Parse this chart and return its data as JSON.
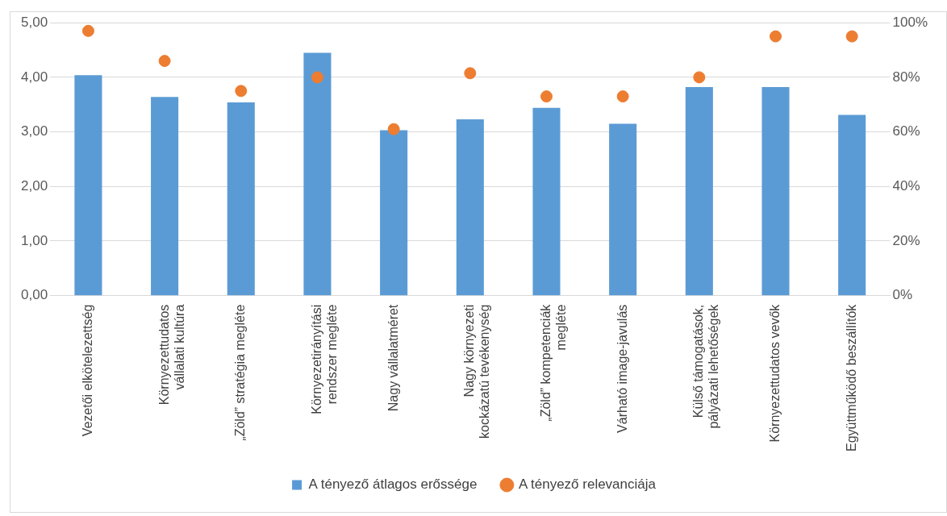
{
  "chart_data": {
    "type": "bar",
    "categories": [
      "Vezetői elkötelezettség",
      "Környezettudatos vállalati kultúra",
      "„Zöld” stratégia megléte",
      "Környezetirányítási rendszer megléte",
      "Nagy vállalatméret",
      "Nagy környezeti kockázatú tevékenység",
      "„Zöld” kompetenciák megléte",
      "Várható image-javulás",
      "Külső támogatások, pályázati lehetőségek",
      "Környezettudatos vevők",
      "Együttműködő beszállítók"
    ],
    "series": [
      {
        "name": "A tényező átlagos erőssége",
        "color": "#5b9bd5",
        "values": [
          4.04,
          3.64,
          3.54,
          4.45,
          3.03,
          3.23,
          3.44,
          3.15,
          3.82,
          3.82,
          3.31
        ]
      },
      {
        "name": "A tényező relevanciája",
        "type": "scatter",
        "axis": "y2",
        "color": "#ed7d31",
        "marker": "circle",
        "values": [
          97,
          86,
          75,
          80,
          61,
          81.5,
          73,
          73,
          80,
          95,
          95
        ]
      }
    ],
    "ylim": [
      0,
      5
    ],
    "yticks": [
      {
        "value": 0,
        "label": "0,00"
      },
      {
        "value": 1,
        "label": "1,00"
      },
      {
        "value": 2,
        "label": "2,00"
      },
      {
        "value": 3,
        "label": "3,00"
      },
      {
        "value": 4,
        "label": "4,00"
      },
      {
        "value": 5,
        "label": "5,00"
      }
    ],
    "y2lim": [
      0,
      100
    ],
    "y2ticks": [
      {
        "value": 0,
        "label": "0%"
      },
      {
        "value": 20,
        "label": "20%"
      },
      {
        "value": 40,
        "label": "40%"
      },
      {
        "value": 60,
        "label": "60%"
      },
      {
        "value": 80,
        "label": "80%"
      },
      {
        "value": 100,
        "label": "100%"
      }
    ],
    "grid": "y",
    "legend": "bottom"
  }
}
